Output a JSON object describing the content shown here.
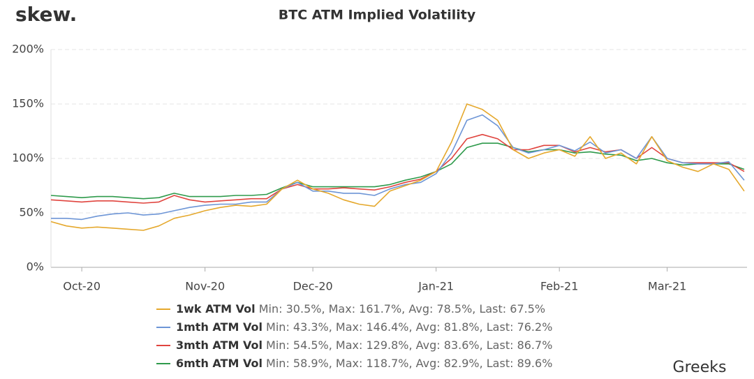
{
  "brand": "skew.",
  "watermark": "Greeks",
  "chart_data": {
    "type": "line",
    "title": "BTC ATM Implied Volatility",
    "categories": [
      null,
      null,
      "Oct-20",
      null,
      null,
      null,
      null,
      null,
      null,
      null,
      "Nov-20",
      null,
      null,
      null,
      null,
      null,
      null,
      "Dec-20",
      null,
      null,
      null,
      null,
      null,
      null,
      null,
      "Jan-21",
      null,
      null,
      null,
      null,
      null,
      null,
      null,
      "Feb-21",
      null,
      null,
      null,
      null,
      null,
      null,
      "Mar-21",
      null,
      null,
      null,
      null,
      null
    ],
    "ylim": [
      0,
      200
    ],
    "yticks": [
      {
        "value": 0,
        "label": "0%"
      },
      {
        "value": 50,
        "label": "50%"
      },
      {
        "value": 100,
        "label": "100%"
      },
      {
        "value": 150,
        "label": "150%"
      },
      {
        "value": 200,
        "label": "200%"
      }
    ],
    "grid": true,
    "series": [
      {
        "name": "1wk ATM Vol",
        "stats": "Min: 30.5%, Max: 161.7%, Avg: 78.5%, Last: 67.5%",
        "color": "#e5a82c",
        "values": [
          42,
          38,
          36,
          37,
          36,
          35,
          34,
          38,
          45,
          48,
          52,
          55,
          57,
          56,
          58,
          72,
          80,
          72,
          68,
          62,
          58,
          56,
          70,
          75,
          80,
          88,
          115,
          150,
          145,
          135,
          108,
          100,
          105,
          108,
          102,
          120,
          100,
          105,
          95,
          120,
          98,
          92,
          88,
          95,
          90,
          70
        ]
      },
      {
        "name": "1mth ATM Vol",
        "stats": "Min: 43.3%, Max: 146.4%, Avg: 81.8%, Last: 76.2%",
        "color": "#6d95d6",
        "values": [
          45,
          45,
          44,
          47,
          49,
          50,
          48,
          49,
          52,
          55,
          57,
          58,
          58,
          60,
          60,
          72,
          78,
          70,
          70,
          68,
          68,
          66,
          72,
          76,
          78,
          86,
          105,
          135,
          140,
          130,
          110,
          105,
          108,
          112,
          107,
          115,
          105,
          108,
          100,
          120,
          100,
          96,
          95,
          95,
          97,
          80
        ]
      },
      {
        "name": "3mth ATM Vol",
        "stats": "Min: 54.5%, Max: 129.8%, Avg: 83.6%, Last: 86.7%",
        "color": "#e0443e",
        "values": [
          62,
          61,
          60,
          61,
          61,
          60,
          59,
          60,
          66,
          62,
          60,
          61,
          62,
          63,
          63,
          72,
          76,
          72,
          72,
          73,
          72,
          71,
          74,
          78,
          81,
          88,
          100,
          118,
          122,
          118,
          108,
          108,
          112,
          112,
          106,
          110,
          106,
          108,
          100,
          110,
          100,
          96,
          96,
          96,
          96,
          88
        ]
      },
      {
        "name": "6mth ATM Vol",
        "stats": "Min: 58.9%, Max: 118.7%, Avg: 82.9%, Last: 89.6%",
        "color": "#2e9a4b",
        "values": [
          66,
          65,
          64,
          65,
          65,
          64,
          63,
          64,
          68,
          65,
          65,
          65,
          66,
          66,
          67,
          73,
          78,
          74,
          74,
          74,
          74,
          74,
          76,
          80,
          83,
          88,
          95,
          110,
          114,
          114,
          110,
          106,
          108,
          108,
          105,
          106,
          104,
          103,
          98,
          100,
          96,
          94,
          95,
          95,
          95,
          90
        ]
      }
    ]
  }
}
